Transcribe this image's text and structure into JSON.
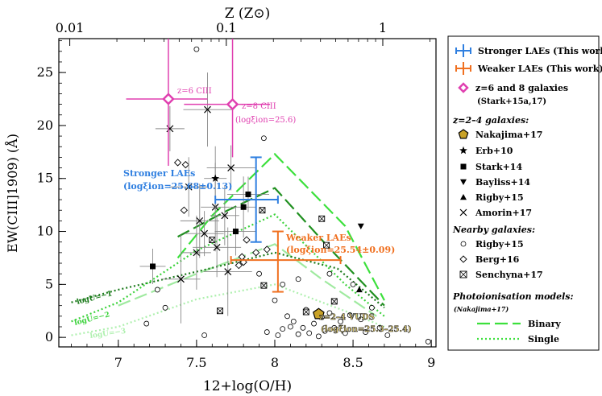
{
  "chart_data": {
    "type": "scatter",
    "title": "",
    "xlabel": "12+log(O/H)",
    "ylabel": "EW(CIII]1909) (Å)",
    "top_axis_label": "Z (Z⊙)",
    "xlim": [
      6.62,
      9.03
    ],
    "ylim": [
      -0.9,
      28.2
    ],
    "x_ticks": [
      "7",
      "7.5",
      "8",
      "8.5",
      "9"
    ],
    "y_ticks": [
      "0",
      "5",
      "10",
      "15",
      "20",
      "25"
    ],
    "top_ticks": [
      {
        "label": "0.01",
        "z": 0.01
      },
      {
        "label": "0.1",
        "z": 0.1
      },
      {
        "label": "1",
        "z": 1
      }
    ],
    "solar_oh": 8.69,
    "stronger_laes": {
      "name": "Stronger LAEs (This work)",
      "color": "#2f7fe0",
      "x": 7.88,
      "x_lo": 7.62,
      "x_hi": 8.02,
      "y": 13.0,
      "y_lo": 9.0,
      "y_hi": 17.0,
      "label_line1": "Stronger LAEs",
      "label_line2": "(logξion=25.68±0.13)"
    },
    "weaker_laes": {
      "name": "Weaker LAEs (This work)",
      "color": "#f07020",
      "x": 8.02,
      "x_lo": 7.72,
      "x_hi": 8.42,
      "y": 7.3,
      "y_lo": 4.3,
      "y_hi": 10.0,
      "label_line1": "Weaker LAEs",
      "label_line2": "(logξion=25.54±0.09)"
    },
    "high_z_galaxies": {
      "name": "z=6 and 8 galaxies",
      "ref": "(Stark+15a,17)",
      "color": "#e040b0",
      "points": [
        {
          "label": "z=6 CIII",
          "x": 7.32,
          "y": 22.5,
          "x_lo": 7.05,
          "x_hi": 7.57,
          "y_lo": 16.2,
          "y_up": 28.2
        },
        {
          "label": "z=8 CIII",
          "sublabel": "(logξion=25.6)",
          "x": 7.73,
          "y": 22.0,
          "x_lo": 7.42,
          "x_hi": 7.97,
          "y_lo": 17.0,
          "y_up": 28.2
        }
      ]
    },
    "z24_galaxies": {
      "heading": "z=2–4 galaxies:",
      "nakajima": {
        "name": "Nakajima+17",
        "x": 8.28,
        "y": 2.2
      },
      "erb": {
        "name": "Erb+10",
        "x": 7.62,
        "y": 15.0
      },
      "stark": {
        "name": "Stark+14",
        "points": [
          [
            7.22,
            6.7
          ],
          [
            7.75,
            10.0
          ],
          [
            7.8,
            12.3
          ],
          [
            7.83,
            13.5
          ]
        ]
      },
      "bayliss": {
        "name": "Bayliss+14",
        "x": 8.55,
        "y": 10.5
      },
      "rigby": {
        "name": "Rigby+15",
        "x": 8.54,
        "y": 4.5
      },
      "amorin": {
        "name": "Amorin+17",
        "points": [
          [
            7.33,
            19.7
          ],
          [
            7.45,
            14.2
          ],
          [
            7.57,
            21.5
          ],
          [
            7.62,
            12.3
          ],
          [
            7.55,
            9.8
          ],
          [
            7.63,
            8.5
          ],
          [
            7.5,
            8.0
          ],
          [
            7.4,
            5.5
          ],
          [
            7.72,
            16.0
          ],
          [
            7.68,
            11.5
          ],
          [
            7.52,
            11.0
          ],
          [
            7.7,
            6.2
          ]
        ]
      }
    },
    "nearby_galaxies": {
      "heading": "Nearby galaxies:",
      "rigby": {
        "name": "Rigby+15",
        "points": [
          [
            7.18,
            1.3
          ],
          [
            7.25,
            4.5
          ],
          [
            7.3,
            2.8
          ],
          [
            7.5,
            27.2
          ],
          [
            7.55,
            0.2
          ],
          [
            7.9,
            6.0
          ],
          [
            7.95,
            0.5
          ],
          [
            8.0,
            3.5
          ],
          [
            8.02,
            0.2
          ],
          [
            8.05,
            0.8
          ],
          [
            8.08,
            2.0
          ],
          [
            8.1,
            1.0
          ],
          [
            8.12,
            1.5
          ],
          [
            8.15,
            0.3
          ],
          [
            8.18,
            0.9
          ],
          [
            8.2,
            2.6
          ],
          [
            8.22,
            0.4
          ],
          [
            8.25,
            1.3
          ],
          [
            8.28,
            0.1
          ],
          [
            8.3,
            1.9
          ],
          [
            8.32,
            0.6
          ],
          [
            8.35,
            2.3
          ],
          [
            8.38,
            0.9
          ],
          [
            8.42,
            1.5
          ],
          [
            8.45,
            0.4
          ],
          [
            8.48,
            2.1
          ],
          [
            8.5,
            5.0
          ],
          [
            8.55,
            1.7
          ],
          [
            8.58,
            0.5
          ],
          [
            8.62,
            2.8
          ],
          [
            8.67,
            0.9
          ],
          [
            8.72,
            0.2
          ],
          [
            8.98,
            -0.4
          ],
          [
            8.05,
            5.0
          ],
          [
            7.93,
            18.8
          ],
          [
            8.15,
            5.5
          ],
          [
            8.35,
            6.0
          ]
        ]
      },
      "berg": {
        "name": "Berg+16",
        "points": [
          [
            7.38,
            16.5
          ],
          [
            7.43,
            16.3
          ],
          [
            7.42,
            12.0
          ],
          [
            7.79,
            7.6
          ],
          [
            7.77,
            6.8
          ],
          [
            7.82,
            9.2
          ],
          [
            7.88,
            8.0
          ],
          [
            7.95,
            8.3
          ],
          [
            7.8,
            7.1
          ]
        ]
      },
      "senchyna": {
        "name": "Senchyna+17",
        "points": [
          [
            7.6,
            9.2
          ],
          [
            7.92,
            12.0
          ],
          [
            7.93,
            4.9
          ],
          [
            8.3,
            11.2
          ],
          [
            8.33,
            8.7
          ],
          [
            8.2,
            2.4
          ],
          [
            8.38,
            3.4
          ],
          [
            7.65,
            2.5
          ]
        ]
      }
    },
    "models": {
      "heading": "Photoionisation models:",
      "ref": "(Nakajima+17)",
      "binary_name": "Binary",
      "single_name": "Single",
      "binary": [
        {
          "color": "#3ce03c",
          "x": [
            7.38,
            7.6,
            8.0,
            8.45,
            8.7
          ],
          "y": [
            7.5,
            11.5,
            17.3,
            10.5,
            3.5
          ]
        },
        {
          "color": "#209020",
          "x": [
            7.38,
            7.7,
            8.0,
            8.35,
            8.7
          ],
          "y": [
            9.5,
            12.0,
            14.1,
            8.4,
            3.0
          ]
        },
        {
          "color": "#a0eaa0",
          "x": [
            7.0,
            7.5,
            8.0,
            8.3,
            8.65
          ],
          "y": [
            3.0,
            6.0,
            8.8,
            5.5,
            2.0
          ]
        }
      ],
      "single": [
        {
          "label": "logU=−1",
          "color": "#1a7a1a",
          "x": [
            6.7,
            7.0,
            7.5,
            8.0,
            8.4,
            8.7
          ],
          "y": [
            3.3,
            4.5,
            6.2,
            8.0,
            6.5,
            2.8
          ]
        },
        {
          "label": "logU=−2",
          "color": "#3ad23a",
          "x": [
            6.7,
            7.0,
            7.5,
            8.0,
            8.45,
            8.7
          ],
          "y": [
            1.5,
            3.3,
            8.2,
            11.6,
            5.0,
            2.0
          ]
        },
        {
          "label": "logU=−3",
          "color": "#aef0ae",
          "x": [
            6.7,
            7.0,
            7.5,
            8.0,
            8.5,
            8.7
          ],
          "y": [
            0.2,
            1.0,
            3.6,
            5.0,
            2.2,
            1.0
          ]
        }
      ]
    },
    "annotations": {
      "vuds_line1": "z=2–4 VUDS",
      "vuds_line2": "(logξion=25.3–25.4)"
    }
  }
}
